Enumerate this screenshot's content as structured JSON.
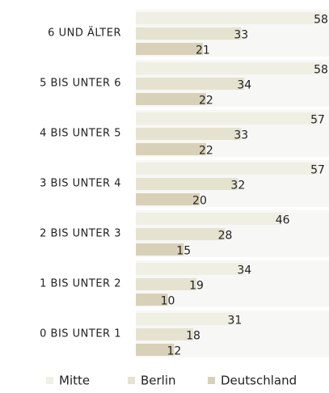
{
  "chart_data": {
    "type": "bar",
    "orientation": "horizontal",
    "categories": [
      "6 UND ÄLTER",
      "5 BIS UNTER 6",
      "4 BIS UNTER 5",
      "3 BIS UNTER 4",
      "2 BIS UNTER 3",
      "1 BIS UNTER 2",
      "0 BIS UNTER 1"
    ],
    "series": [
      {
        "name": "Mitte",
        "color": "#f0efe4",
        "values": [
          58,
          58,
          57,
          57,
          46,
          34,
          31
        ]
      },
      {
        "name": "Berlin",
        "color": "#e5e2d0",
        "values": [
          33,
          34,
          33,
          32,
          28,
          19,
          18
        ]
      },
      {
        "name": "Deutschland",
        "color": "#d9d1b7",
        "values": [
          21,
          22,
          22,
          20,
          15,
          10,
          12
        ]
      }
    ],
    "legend": "bottom"
  }
}
